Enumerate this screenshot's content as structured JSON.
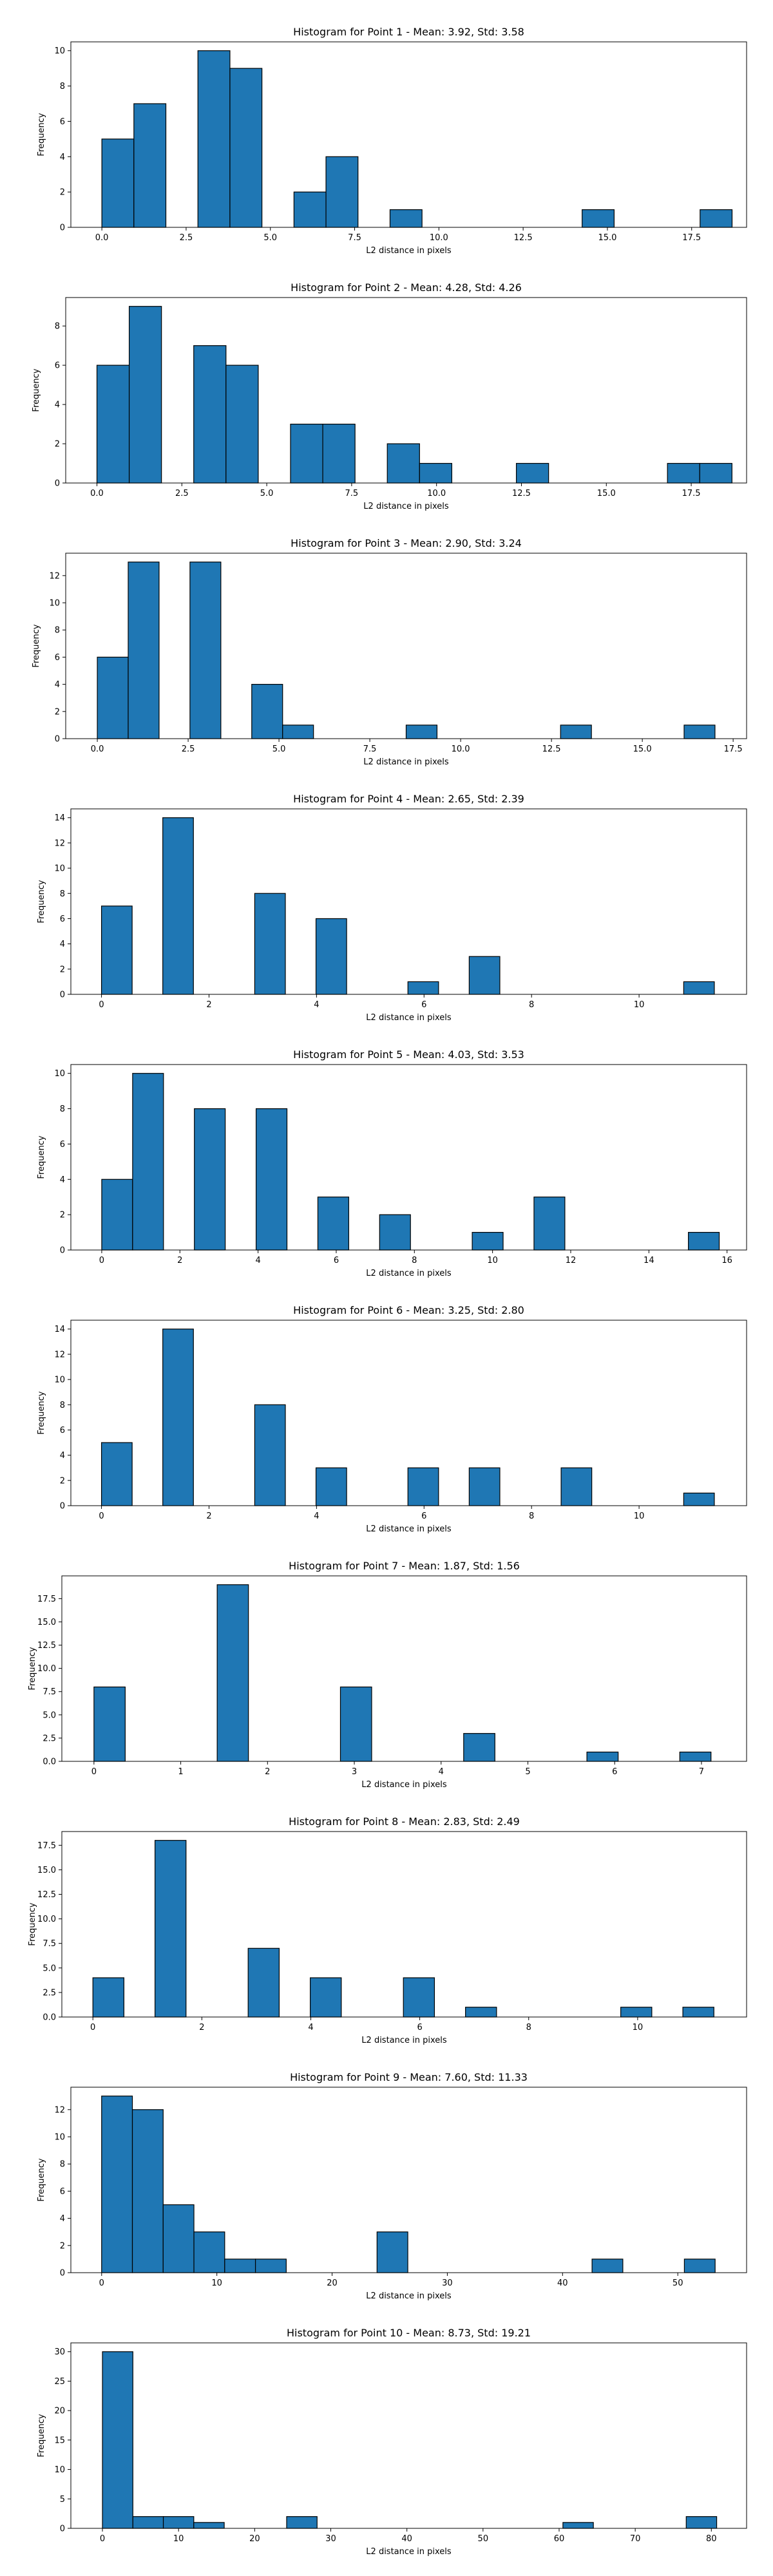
{
  "chart_data": [
    {
      "type": "bar",
      "title": "Histogram for Point 1 - Mean: 3.92, Std: 3.58",
      "xlabel": "L2 distance in pixels",
      "ylabel": "Frequency",
      "xlim": [
        -0.92,
        19.13
      ],
      "ylim": [
        0,
        10.5
      ],
      "xticks": [
        0,
        2.5,
        5,
        7.5,
        10,
        12.5,
        15,
        17.5
      ],
      "xtick_labels": [
        "0.0",
        "2.5",
        "5.0",
        "7.5",
        "10.0",
        "12.5",
        "15.0",
        "17.5"
      ],
      "yticks": [
        0,
        2,
        4,
        6,
        8,
        10
      ],
      "ytick_labels": [
        "0",
        "2",
        "4",
        "6",
        "8",
        "10"
      ],
      "bin_width": 0.95,
      "bins": [
        {
          "x": 0.0,
          "count": 5
        },
        {
          "x": 0.95,
          "count": 7
        },
        {
          "x": 2.85,
          "count": 10
        },
        {
          "x": 3.8,
          "count": 9
        },
        {
          "x": 5.7,
          "count": 2
        },
        {
          "x": 6.65,
          "count": 4
        },
        {
          "x": 8.55,
          "count": 1
        },
        {
          "x": 14.25,
          "count": 1
        },
        {
          "x": 17.75,
          "count": 1
        }
      ],
      "color": "#1f77b4",
      "edgecolor": "#000000"
    },
    {
      "type": "bar",
      "title": "Histogram for Point 2 - Mean: 4.28, Std: 4.26",
      "xlabel": "L2 distance in pixels",
      "ylabel": "Frequency",
      "xlim": [
        -0.92,
        19.13
      ],
      "ylim": [
        0,
        9.45
      ],
      "xticks": [
        0,
        2.5,
        5,
        7.5,
        10,
        12.5,
        15,
        17.5
      ],
      "xtick_labels": [
        "0.0",
        "2.5",
        "5.0",
        "7.5",
        "10.0",
        "12.5",
        "15.0",
        "17.5"
      ],
      "yticks": [
        0,
        2,
        4,
        6,
        8
      ],
      "ytick_labels": [
        "0",
        "2",
        "4",
        "6",
        "8"
      ],
      "bin_width": 0.95,
      "bins": [
        {
          "x": 0.0,
          "count": 6
        },
        {
          "x": 0.95,
          "count": 9
        },
        {
          "x": 2.85,
          "count": 7
        },
        {
          "x": 3.8,
          "count": 6
        },
        {
          "x": 5.7,
          "count": 3
        },
        {
          "x": 6.65,
          "count": 3
        },
        {
          "x": 8.55,
          "count": 2
        },
        {
          "x": 9.5,
          "count": 1
        },
        {
          "x": 12.35,
          "count": 1
        },
        {
          "x": 16.8,
          "count": 1
        },
        {
          "x": 17.75,
          "count": 1
        }
      ],
      "color": "#1f77b4",
      "edgecolor": "#000000"
    },
    {
      "type": "bar",
      "title": "Histogram for Point 3 - Mean: 2.90, Std: 3.24",
      "xlabel": "L2 distance in pixels",
      "ylabel": "Frequency",
      "xlim": [
        -0.87,
        17.87
      ],
      "ylim": [
        0,
        13.65
      ],
      "xticks": [
        0,
        2.5,
        5,
        7.5,
        10,
        12.5,
        15,
        17.5
      ],
      "xtick_labels": [
        "0.0",
        "2.5",
        "5.0",
        "7.5",
        "10.0",
        "12.5",
        "15.0",
        "17.5"
      ],
      "yticks": [
        0,
        2,
        4,
        6,
        8,
        10,
        12
      ],
      "ytick_labels": [
        "0",
        "2",
        "4",
        "6",
        "8",
        "10",
        "12"
      ],
      "bin_width": 0.85,
      "bins": [
        {
          "x": 0.0,
          "count": 6
        },
        {
          "x": 0.85,
          "count": 13
        },
        {
          "x": 2.55,
          "count": 13
        },
        {
          "x": 4.25,
          "count": 4
        },
        {
          "x": 5.1,
          "count": 1
        },
        {
          "x": 8.5,
          "count": 1
        },
        {
          "x": 12.75,
          "count": 1
        },
        {
          "x": 16.15,
          "count": 1
        }
      ],
      "color": "#1f77b4",
      "edgecolor": "#000000"
    },
    {
      "type": "bar",
      "title": "Histogram for Point 4 - Mean: 2.65, Std: 2.39",
      "xlabel": "L2 distance in pixels",
      "ylabel": "Frequency",
      "xlim": [
        -0.57,
        12.0
      ],
      "ylim": [
        0,
        14.7
      ],
      "xticks": [
        0,
        2,
        4,
        6,
        8,
        10
      ],
      "xtick_labels": [
        "0",
        "2",
        "4",
        "6",
        "8",
        "10"
      ],
      "yticks": [
        0,
        2,
        4,
        6,
        8,
        10,
        12,
        14
      ],
      "ytick_labels": [
        "0",
        "2",
        "4",
        "6",
        "8",
        "10",
        "12",
        "14"
      ],
      "bin_width": 0.57,
      "bins": [
        {
          "x": 0.0,
          "count": 7
        },
        {
          "x": 1.14,
          "count": 14
        },
        {
          "x": 2.85,
          "count": 8
        },
        {
          "x": 3.99,
          "count": 6
        },
        {
          "x": 5.7,
          "count": 1
        },
        {
          "x": 6.84,
          "count": 3
        },
        {
          "x": 10.83,
          "count": 1
        }
      ],
      "color": "#1f77b4",
      "edgecolor": "#000000"
    },
    {
      "type": "bar",
      "title": "Histogram for Point 5 - Mean: 4.03, Std: 3.53",
      "xlabel": "L2 distance in pixels",
      "ylabel": "Frequency",
      "xlim": [
        -0.79,
        16.5
      ],
      "ylim": [
        0,
        10.5
      ],
      "xticks": [
        0,
        2,
        4,
        6,
        8,
        10,
        12,
        14,
        16
      ],
      "xtick_labels": [
        "0",
        "2",
        "4",
        "6",
        "8",
        "10",
        "12",
        "14",
        "16"
      ],
      "yticks": [
        0,
        2,
        4,
        6,
        8,
        10
      ],
      "ytick_labels": [
        "0",
        "2",
        "4",
        "6",
        "8",
        "10"
      ],
      "bin_width": 0.79,
      "bins": [
        {
          "x": 0.0,
          "count": 4
        },
        {
          "x": 0.79,
          "count": 10
        },
        {
          "x": 2.37,
          "count": 8
        },
        {
          "x": 3.95,
          "count": 8
        },
        {
          "x": 5.53,
          "count": 3
        },
        {
          "x": 7.11,
          "count": 2
        },
        {
          "x": 9.48,
          "count": 1
        },
        {
          "x": 11.06,
          "count": 3
        },
        {
          "x": 15.01,
          "count": 1
        }
      ],
      "color": "#1f77b4",
      "edgecolor": "#000000"
    },
    {
      "type": "bar",
      "title": "Histogram for Point 6 - Mean: 3.25, Std: 2.80",
      "xlabel": "L2 distance in pixels",
      "ylabel": "Frequency",
      "xlim": [
        -0.57,
        12.0
      ],
      "ylim": [
        0,
        14.7
      ],
      "xticks": [
        0,
        2,
        4,
        6,
        8,
        10
      ],
      "xtick_labels": [
        "0",
        "2",
        "4",
        "6",
        "8",
        "10"
      ],
      "yticks": [
        0,
        2,
        4,
        6,
        8,
        10,
        12,
        14
      ],
      "ytick_labels": [
        "0",
        "2",
        "4",
        "6",
        "8",
        "10",
        "12",
        "14"
      ],
      "bin_width": 0.57,
      "bins": [
        {
          "x": 0.0,
          "count": 5
        },
        {
          "x": 1.14,
          "count": 14
        },
        {
          "x": 2.85,
          "count": 8
        },
        {
          "x": 3.99,
          "count": 3
        },
        {
          "x": 5.7,
          "count": 3
        },
        {
          "x": 6.84,
          "count": 3
        },
        {
          "x": 8.55,
          "count": 3
        },
        {
          "x": 10.83,
          "count": 1
        }
      ],
      "color": "#1f77b4",
      "edgecolor": "#000000"
    },
    {
      "type": "bar",
      "title": "Histogram for Point 7 - Mean: 1.87, Std: 1.56",
      "xlabel": "L2 distance in pixels",
      "ylabel": "Frequency",
      "xlim": [
        -0.37,
        7.52
      ],
      "ylim": [
        0,
        19.95
      ],
      "xticks": [
        0,
        1,
        2,
        3,
        4,
        5,
        6,
        7
      ],
      "xtick_labels": [
        "0",
        "1",
        "2",
        "3",
        "4",
        "5",
        "6",
        "7"
      ],
      "yticks": [
        0,
        2.5,
        5,
        7.5,
        10,
        12.5,
        15,
        17.5
      ],
      "ytick_labels": [
        "0.0",
        "2.5",
        "5.0",
        "7.5",
        "10.0",
        "12.5",
        "15.0",
        "17.5"
      ],
      "bin_width": 0.36,
      "bins": [
        {
          "x": 0.0,
          "count": 8
        },
        {
          "x": 1.42,
          "count": 19
        },
        {
          "x": 2.84,
          "count": 8
        },
        {
          "x": 4.26,
          "count": 3
        },
        {
          "x": 5.68,
          "count": 1
        },
        {
          "x": 6.75,
          "count": 1
        }
      ],
      "color": "#1f77b4",
      "edgecolor": "#000000"
    },
    {
      "type": "bar",
      "title": "Histogram for Point 8 - Mean: 2.83, Std: 2.49",
      "xlabel": "L2 distance in pixels",
      "ylabel": "Frequency",
      "xlim": [
        -0.57,
        12.0
      ],
      "ylim": [
        0,
        18.9
      ],
      "xticks": [
        0,
        2,
        4,
        6,
        8,
        10
      ],
      "xtick_labels": [
        "0",
        "2",
        "4",
        "6",
        "8",
        "10"
      ],
      "yticks": [
        0,
        2.5,
        5,
        7.5,
        10,
        12.5,
        15,
        17.5
      ],
      "ytick_labels": [
        "0.0",
        "2.5",
        "5.0",
        "7.5",
        "10.0",
        "12.5",
        "15.0",
        "17.5"
      ],
      "bin_width": 0.57,
      "bins": [
        {
          "x": 0.0,
          "count": 4
        },
        {
          "x": 1.14,
          "count": 18
        },
        {
          "x": 2.85,
          "count": 7
        },
        {
          "x": 3.99,
          "count": 4
        },
        {
          "x": 5.7,
          "count": 4
        },
        {
          "x": 6.84,
          "count": 1
        },
        {
          "x": 9.69,
          "count": 1
        },
        {
          "x": 10.83,
          "count": 1
        }
      ],
      "color": "#1f77b4",
      "edgecolor": "#000000"
    },
    {
      "type": "bar",
      "title": "Histogram for Point 9 - Mean: 7.60, Std: 11.33",
      "xlabel": "L2 distance in pixels",
      "ylabel": "Frequency",
      "xlim": [
        -2.67,
        55.97
      ],
      "ylim": [
        0,
        13.65
      ],
      "xticks": [
        0,
        10,
        20,
        30,
        40,
        50
      ],
      "xtick_labels": [
        "0",
        "10",
        "20",
        "30",
        "40",
        "50"
      ],
      "yticks": [
        0,
        2,
        4,
        6,
        8,
        10,
        12
      ],
      "ytick_labels": [
        "0",
        "2",
        "4",
        "6",
        "8",
        "10",
        "12"
      ],
      "bin_width": 2.67,
      "bins": [
        {
          "x": 0.0,
          "count": 13
        },
        {
          "x": 2.67,
          "count": 12
        },
        {
          "x": 5.34,
          "count": 5
        },
        {
          "x": 8.01,
          "count": 3
        },
        {
          "x": 10.68,
          "count": 1
        },
        {
          "x": 13.35,
          "count": 1
        },
        {
          "x": 23.9,
          "count": 3
        },
        {
          "x": 42.56,
          "count": 1
        },
        {
          "x": 50.57,
          "count": 1
        }
      ],
      "color": "#1f77b4",
      "edgecolor": "#000000"
    },
    {
      "type": "bar",
      "title": "Histogram for Point 10 - Mean: 8.73, Std: 19.21",
      "xlabel": "L2 distance in pixels",
      "ylabel": "Frequency",
      "xlim": [
        -4.15,
        84.63
      ],
      "ylim": [
        0,
        31.5
      ],
      "xticks": [
        0,
        10,
        20,
        30,
        40,
        50,
        60,
        70,
        80
      ],
      "xtick_labels": [
        "0",
        "10",
        "20",
        "30",
        "40",
        "50",
        "60",
        "70",
        "80"
      ],
      "yticks": [
        0,
        5,
        10,
        15,
        20,
        25,
        30
      ],
      "ytick_labels": [
        "0",
        "5",
        "10",
        "15",
        "20",
        "25",
        "30"
      ],
      "bin_width": 4.0,
      "bins": [
        {
          "x": 0.0,
          "count": 30
        },
        {
          "x": 4.0,
          "count": 2
        },
        {
          "x": 8.0,
          "count": 2
        },
        {
          "x": 12.0,
          "count": 1
        },
        {
          "x": 24.2,
          "count": 2
        },
        {
          "x": 60.5,
          "count": 1
        },
        {
          "x": 76.7,
          "count": 2
        }
      ],
      "color": "#1f77b4",
      "edgecolor": "#000000"
    }
  ]
}
